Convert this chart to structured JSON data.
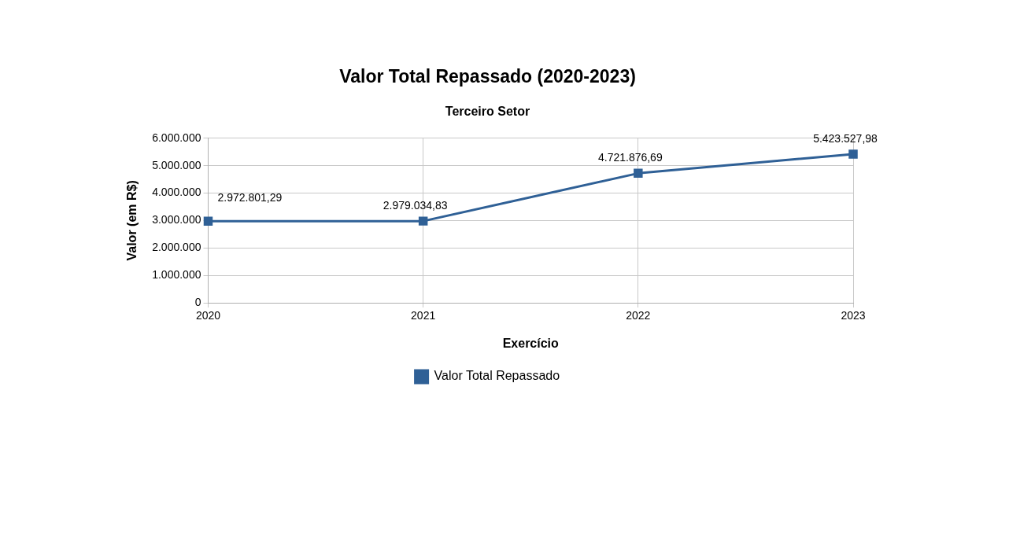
{
  "chart_data": {
    "type": "line",
    "title": "Valor Total Repassado (2020-2023)",
    "subtitle": "Terceiro Setor",
    "xlabel": "Exercício",
    "ylabel": "Valor (em R$)",
    "categories": [
      "2020",
      "2021",
      "2022",
      "2023"
    ],
    "series": [
      {
        "name": "Valor Total Repassado",
        "color": "#2f6096",
        "values": [
          2972801.29,
          2979034.83,
          4721876.69,
          5423527.98
        ],
        "value_labels": [
          "2.972.801,29",
          "2.979.034,83",
          "4.721.876,69",
          "5.423.527,98"
        ]
      }
    ],
    "ylim": [
      0,
      6000000
    ],
    "yticks": [
      {
        "value": 0,
        "label": "0"
      },
      {
        "value": 1000000,
        "label": "1.000.000"
      },
      {
        "value": 2000000,
        "label": "2.000.000"
      },
      {
        "value": 3000000,
        "label": "3.000.000"
      },
      {
        "value": 4000000,
        "label": "4.000.000"
      },
      {
        "value": 5000000,
        "label": "5.000.000"
      },
      {
        "value": 6000000,
        "label": "6.000.000"
      }
    ],
    "grid": true,
    "legend": "bottom",
    "marker": "square",
    "line_style": "solid"
  }
}
